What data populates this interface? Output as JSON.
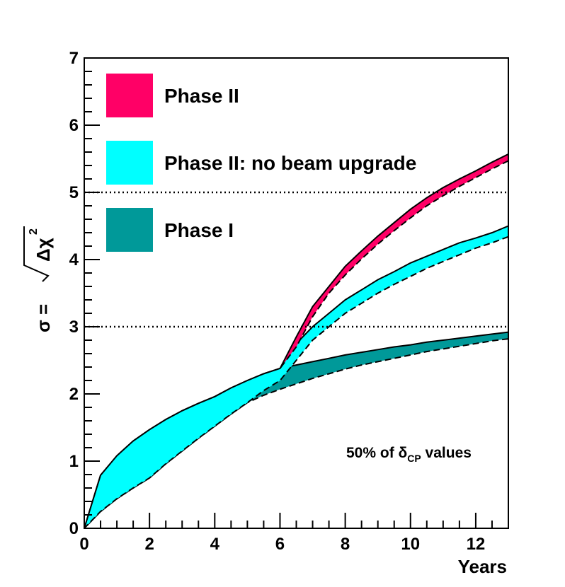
{
  "chart_data": {
    "type": "area",
    "title": "",
    "xlabel": "Years",
    "ylabel": "σ = √Δχ²",
    "ylabel_parts": {
      "lhs": "σ =",
      "radicand": "Δχ",
      "exponent": "2"
    },
    "xlim": [
      0,
      13
    ],
    "ylim": [
      0,
      7
    ],
    "xticks": [
      0,
      2,
      4,
      6,
      8,
      10,
      12
    ],
    "yticks": [
      0,
      1,
      2,
      3,
      4,
      5,
      6,
      7
    ],
    "reference_lines": [
      {
        "y": 5,
        "style": "dotted"
      },
      {
        "y": 3,
        "style": "dotted"
      }
    ],
    "annotation": {
      "text": "50% of δ",
      "subscript": "CP",
      "suffix": " values",
      "placement": "lower-right"
    },
    "legend": {
      "placement": "top-left",
      "entries": [
        {
          "label": "Phase II",
          "color": "#ff0066"
        },
        {
          "label": "Phase II: no beam upgrade",
          "color": "#00ffff"
        },
        {
          "label": "Phase I",
          "color": "#009999"
        }
      ]
    },
    "series": [
      {
        "name": "Phase I",
        "color": "#009999",
        "x": [
          0,
          0.5,
          1,
          1.5,
          2,
          2.5,
          3,
          3.5,
          4,
          4.5,
          5,
          5.5,
          6,
          6.5,
          7,
          7.5,
          8,
          8.5,
          9,
          9.5,
          10,
          10.5,
          11,
          11.5,
          12,
          12.5,
          13
        ],
        "upper": [
          0,
          0.79,
          1.08,
          1.3,
          1.47,
          1.62,
          1.75,
          1.86,
          1.96,
          2.09,
          2.2,
          2.3,
          2.38,
          2.43,
          2.48,
          2.53,
          2.58,
          2.62,
          2.66,
          2.7,
          2.73,
          2.77,
          2.8,
          2.83,
          2.86,
          2.89,
          2.92
        ],
        "lower": [
          0,
          0.25,
          0.44,
          0.6,
          0.75,
          0.96,
          1.15,
          1.34,
          1.52,
          1.7,
          1.87,
          1.98,
          2.07,
          2.15,
          2.23,
          2.3,
          2.37,
          2.43,
          2.48,
          2.53,
          2.58,
          2.63,
          2.67,
          2.71,
          2.75,
          2.79,
          2.82
        ]
      },
      {
        "name": "Phase II: no beam upgrade",
        "color": "#00ffff",
        "x": [
          0,
          0.5,
          1,
          1.5,
          2,
          2.5,
          3,
          3.5,
          4,
          4.5,
          5,
          5.5,
          6,
          6.5,
          7,
          7.5,
          8,
          8.5,
          9,
          9.5,
          10,
          10.5,
          11,
          11.5,
          12,
          12.5,
          13
        ],
        "upper": [
          0,
          0.79,
          1.08,
          1.3,
          1.47,
          1.62,
          1.75,
          1.86,
          1.96,
          2.09,
          2.2,
          2.3,
          2.38,
          2.75,
          3.0,
          3.2,
          3.4,
          3.55,
          3.7,
          3.82,
          3.95,
          4.05,
          4.15,
          4.25,
          4.32,
          4.4,
          4.5
        ],
        "lower": [
          0,
          0.25,
          0.44,
          0.6,
          0.75,
          0.96,
          1.15,
          1.34,
          1.52,
          1.7,
          1.87,
          2.05,
          2.2,
          2.5,
          2.8,
          3.0,
          3.2,
          3.35,
          3.5,
          3.63,
          3.75,
          3.87,
          3.97,
          4.07,
          4.17,
          4.25,
          4.34
        ]
      },
      {
        "name": "Phase II",
        "color": "#ff0066",
        "x": [
          6,
          6.5,
          7,
          7.5,
          8,
          8.5,
          9,
          9.5,
          10,
          10.5,
          11,
          11.5,
          12,
          12.5,
          13
        ],
        "upper": [
          2.38,
          2.85,
          3.3,
          3.6,
          3.9,
          4.13,
          4.35,
          4.55,
          4.75,
          4.92,
          5.07,
          5.2,
          5.32,
          5.45,
          5.57
        ],
        "lower": [
          2.38,
          2.7,
          3.15,
          3.5,
          3.77,
          4.01,
          4.23,
          4.43,
          4.62,
          4.8,
          4.95,
          5.09,
          5.22,
          5.35,
          5.47
        ]
      }
    ]
  }
}
